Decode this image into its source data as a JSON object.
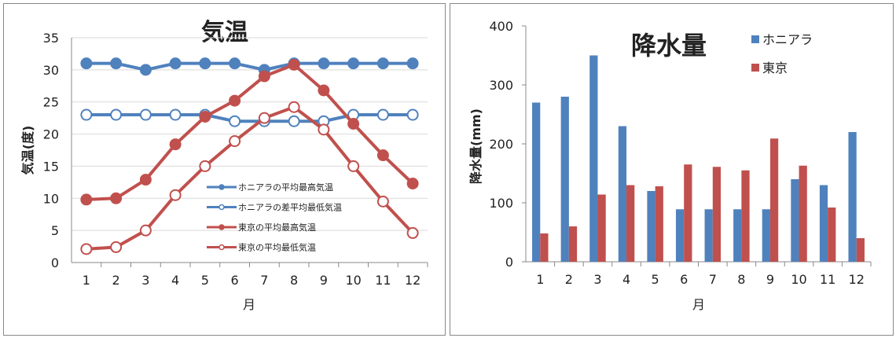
{
  "chart_data": [
    {
      "type": "line",
      "title": "気温",
      "xlabel": "月",
      "ylabel": "気温(度)",
      "ylim": [
        0,
        35
      ],
      "yticks": [
        0,
        5,
        10,
        15,
        20,
        25,
        30,
        35
      ],
      "grid": true,
      "legend_position": "center-right",
      "x": [
        1,
        2,
        3,
        4,
        5,
        6,
        7,
        8,
        9,
        10,
        11,
        12
      ],
      "series": [
        {
          "name": "ホニアラの平均最高気温",
          "color": "#4F81BD",
          "marker": "filled",
          "values": [
            31,
            31,
            30,
            31,
            31,
            31,
            30,
            31,
            31,
            31,
            31,
            31
          ]
        },
        {
          "name": "ホニアラの差平均最低気温",
          "color": "#4F81BD",
          "marker": "open",
          "values": [
            23,
            23,
            23,
            23,
            23,
            22,
            22,
            22,
            22,
            23,
            23,
            23
          ]
        },
        {
          "name": "東京の平均最高気温",
          "color": "#C0504D",
          "marker": "filled",
          "values": [
            9.8,
            10.0,
            12.9,
            18.4,
            22.7,
            25.2,
            29.0,
            30.8,
            26.8,
            21.6,
            16.7,
            12.3
          ]
        },
        {
          "name": "東京の平均最低気温",
          "color": "#C0504D",
          "marker": "open",
          "values": [
            2.1,
            2.4,
            5.0,
            10.5,
            15.0,
            18.9,
            22.5,
            24.2,
            20.7,
            15.0,
            9.5,
            4.6
          ]
        }
      ]
    },
    {
      "type": "bar",
      "title": "降水量",
      "xlabel": "月",
      "ylabel": "降水量(mm)",
      "ylim": [
        0,
        400
      ],
      "yticks": [
        0,
        100,
        200,
        300,
        400
      ],
      "grid": false,
      "legend_position": "top-right",
      "categories": [
        "1",
        "2",
        "3",
        "4",
        "5",
        "6",
        "7",
        "8",
        "9",
        "10",
        "11",
        "12"
      ],
      "series": [
        {
          "name": "ホニアラ",
          "color": "#4F81BD",
          "values": [
            270,
            280,
            350,
            230,
            120,
            89,
            89,
            89,
            89,
            140,
            130,
            220
          ]
        },
        {
          "name": "東京",
          "color": "#C0504D",
          "values": [
            48,
            60,
            114,
            130,
            128,
            165,
            161,
            155,
            209,
            163,
            92,
            40
          ]
        }
      ]
    }
  ]
}
